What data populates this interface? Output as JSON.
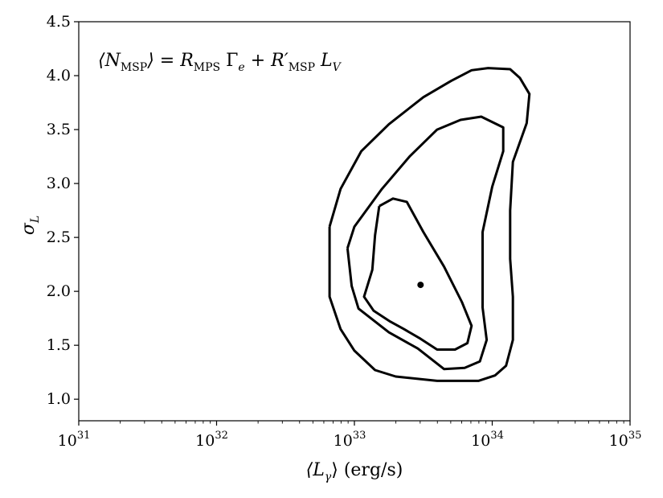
{
  "chart_data": {
    "type": "line",
    "title": "",
    "annotation": {
      "lhs_open": "⟨N",
      "lhs_sub": "MSP",
      "lhs_close": "⟩ = R",
      "r1_sub": "MPS",
      "gamma": " Γ",
      "gamma_sub": "e",
      "plus": " + R′",
      "r2_sub": "MSP",
      "lv": " L",
      "lv_sub": "V"
    },
    "xlabel": {
      "main": "⟨L",
      "sub": "γ",
      "rest": "⟩ (erg/s)"
    },
    "ylabel": {
      "main": "σ",
      "sub": "L"
    },
    "xscale": "log",
    "xlim_exp": [
      31,
      35
    ],
    "ylim": [
      0.8,
      4.5
    ],
    "x_ticks": [
      {
        "base": "10",
        "exp": "31",
        "value_exp": 31
      },
      {
        "base": "10",
        "exp": "32",
        "value_exp": 32
      },
      {
        "base": "10",
        "exp": "33",
        "value_exp": 33
      },
      {
        "base": "10",
        "exp": "34",
        "value_exp": 34
      },
      {
        "base": "10",
        "exp": "35",
        "value_exp": 35
      }
    ],
    "y_ticks": [
      "1.0",
      "1.5",
      "2.0",
      "2.5",
      "3.0",
      "3.5",
      "4.0",
      "4.5"
    ],
    "grid": false,
    "best_fit": {
      "log10_x": 33.48,
      "y": 2.06
    },
    "contours": [
      {
        "level": "inner",
        "log10_points": [
          [
            33.18,
            2.79
          ],
          [
            33.28,
            2.86
          ],
          [
            33.38,
            2.83
          ],
          [
            33.5,
            2.55
          ],
          [
            33.65,
            2.23
          ],
          [
            33.78,
            1.9
          ],
          [
            33.85,
            1.68
          ],
          [
            33.82,
            1.52
          ],
          [
            33.73,
            1.46
          ],
          [
            33.6,
            1.46
          ],
          [
            33.48,
            1.56
          ],
          [
            33.36,
            1.65
          ],
          [
            33.26,
            1.72
          ],
          [
            33.14,
            1.82
          ],
          [
            33.07,
            1.95
          ],
          [
            33.13,
            2.2
          ],
          [
            33.15,
            2.52
          ],
          [
            33.18,
            2.79
          ]
        ]
      },
      {
        "level": "middle",
        "log10_points": [
          [
            32.95,
            2.4
          ],
          [
            33.0,
            2.6
          ],
          [
            33.2,
            2.95
          ],
          [
            33.4,
            3.25
          ],
          [
            33.6,
            3.5
          ],
          [
            33.77,
            3.59
          ],
          [
            33.92,
            3.62
          ],
          [
            34.08,
            3.52
          ],
          [
            34.08,
            3.3
          ],
          [
            34.0,
            2.97
          ],
          [
            33.93,
            2.55
          ],
          [
            33.93,
            1.85
          ],
          [
            33.96,
            1.55
          ],
          [
            33.91,
            1.35
          ],
          [
            33.8,
            1.29
          ],
          [
            33.65,
            1.28
          ],
          [
            33.46,
            1.47
          ],
          [
            33.25,
            1.62
          ],
          [
            33.03,
            1.84
          ],
          [
            32.98,
            2.05
          ],
          [
            32.95,
            2.4
          ]
        ]
      },
      {
        "level": "outer",
        "log10_points": [
          [
            32.82,
            2.6
          ],
          [
            32.9,
            2.95
          ],
          [
            33.05,
            3.3
          ],
          [
            33.25,
            3.55
          ],
          [
            33.5,
            3.8
          ],
          [
            33.7,
            3.95
          ],
          [
            33.85,
            4.05
          ],
          [
            33.97,
            4.07
          ],
          [
            34.13,
            4.06
          ],
          [
            34.2,
            3.98
          ],
          [
            34.27,
            3.83
          ],
          [
            34.25,
            3.56
          ],
          [
            34.15,
            3.2
          ],
          [
            34.13,
            2.75
          ],
          [
            34.13,
            2.3
          ],
          [
            34.15,
            1.95
          ],
          [
            34.15,
            1.55
          ],
          [
            34.1,
            1.31
          ],
          [
            34.02,
            1.22
          ],
          [
            33.9,
            1.17
          ],
          [
            33.8,
            1.17
          ],
          [
            33.6,
            1.17
          ],
          [
            33.3,
            1.21
          ],
          [
            33.15,
            1.27
          ],
          [
            33.0,
            1.45
          ],
          [
            32.9,
            1.65
          ],
          [
            32.82,
            1.95
          ],
          [
            32.82,
            2.25
          ],
          [
            32.82,
            2.6
          ]
        ]
      }
    ]
  }
}
